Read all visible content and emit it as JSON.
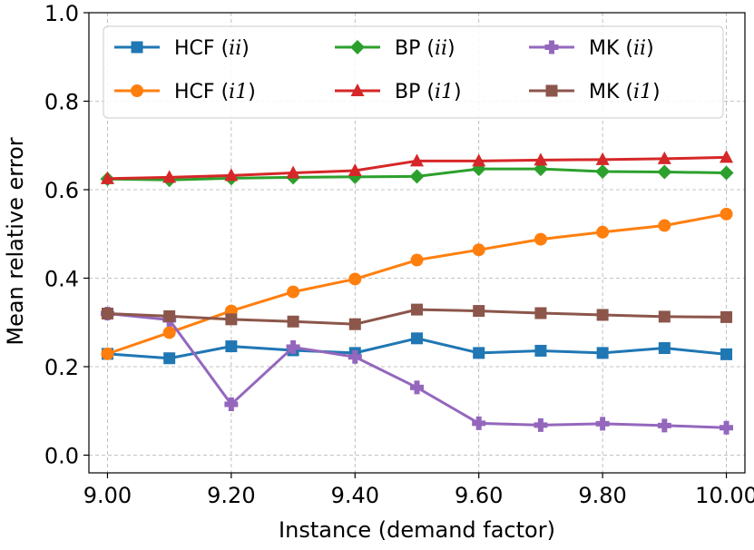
{
  "chart_data": {
    "type": "line",
    "xlabel": "Instance (demand factor)",
    "ylabel": "Mean relative error",
    "xlim": [
      8.97,
      10.03
    ],
    "ylim": [
      -0.04,
      1.0
    ],
    "x": [
      9.0,
      9.1,
      9.2,
      9.3,
      9.4,
      9.5,
      9.6,
      9.7,
      9.8,
      9.9,
      10.0
    ],
    "x_ticks": [
      9.0,
      9.2,
      9.4,
      9.6,
      9.8,
      10.0
    ],
    "x_tick_labels": [
      "9.00",
      "9.20",
      "9.40",
      "9.60",
      "9.80",
      "10.00"
    ],
    "y_ticks": [
      0.0,
      0.2,
      0.4,
      0.6,
      0.8,
      1.0
    ],
    "y_tick_labels": [
      "0.0",
      "0.2",
      "0.4",
      "0.6",
      "0.8",
      "1.0"
    ],
    "grid": true,
    "legend_position": "top",
    "legend_columns": 3,
    "series": [
      {
        "name_main": "HCF",
        "name_paren": "ii",
        "color": "#1f77b4",
        "marker": "square",
        "values": [
          0.229,
          0.219,
          0.246,
          0.237,
          0.231,
          0.264,
          0.231,
          0.236,
          0.231,
          0.242,
          0.228
        ]
      },
      {
        "name_main": "HCF",
        "name_paren": "i1",
        "color": "#ff7f0e",
        "marker": "circle",
        "values": [
          0.229,
          0.277,
          0.326,
          0.369,
          0.398,
          0.441,
          0.464,
          0.488,
          0.504,
          0.519,
          0.545
        ]
      },
      {
        "name_main": "BP",
        "name_paren": "ii",
        "color": "#2ca02c",
        "marker": "diamond",
        "values": [
          0.624,
          0.622,
          0.626,
          0.628,
          0.629,
          0.63,
          0.647,
          0.647,
          0.641,
          0.64,
          0.638
        ]
      },
      {
        "name_main": "BP",
        "name_paren": "i1",
        "color": "#d62728",
        "marker": "triangle",
        "values": [
          0.625,
          0.628,
          0.632,
          0.638,
          0.643,
          0.665,
          0.665,
          0.667,
          0.668,
          0.67,
          0.673
        ]
      },
      {
        "name_main": "MK",
        "name_paren": "ii",
        "color": "#9467bd",
        "marker": "plus",
        "values": [
          0.32,
          0.306,
          0.115,
          0.244,
          0.222,
          0.153,
          0.072,
          0.068,
          0.071,
          0.067,
          0.062
        ]
      },
      {
        "name_main": "MK",
        "name_paren": "i1",
        "color": "#8c564b",
        "marker": "square",
        "values": [
          0.32,
          0.314,
          0.307,
          0.302,
          0.296,
          0.329,
          0.326,
          0.321,
          0.317,
          0.313,
          0.312
        ]
      }
    ]
  }
}
